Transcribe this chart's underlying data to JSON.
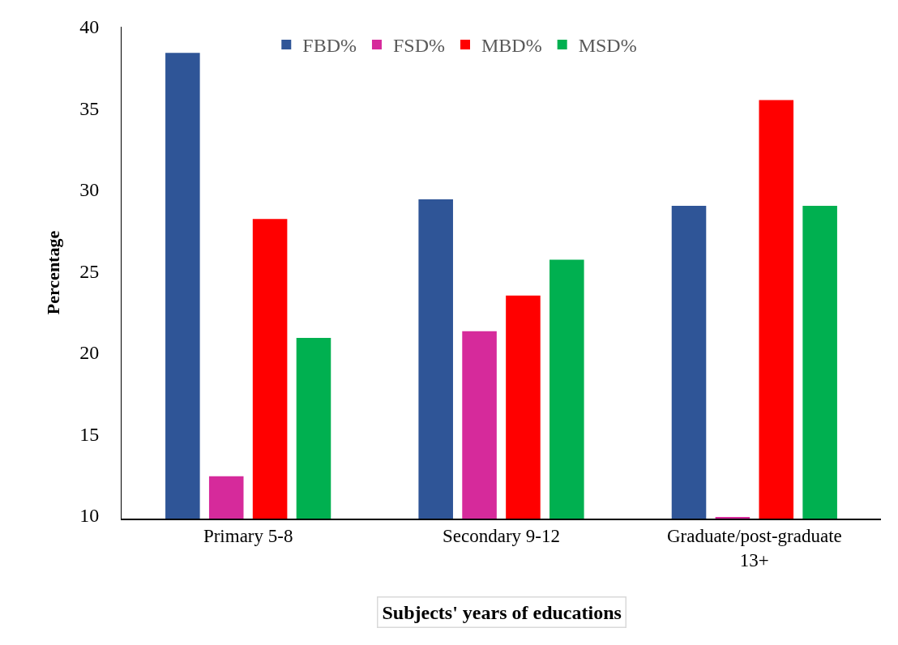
{
  "chart_data": {
    "type": "bar",
    "xlabel": "Subjects' years of educations",
    "ylabel": "Percentage",
    "categories": [
      "Primary 5-8",
      "Secondary 9-12",
      "Graduate/post-graduate 13+"
    ],
    "series": [
      {
        "name": "FBD%",
        "color": "#2f5597",
        "values": [
          38.4,
          29.4,
          29.0
        ]
      },
      {
        "name": "FSD%",
        "color": "#d62a9b",
        "values": [
          12.4,
          21.3,
          9.9
        ]
      },
      {
        "name": "MBD%",
        "color": "#ff0000",
        "values": [
          28.2,
          23.5,
          35.5
        ]
      },
      {
        "name": "MSD%",
        "color": "#00b050",
        "values": [
          20.9,
          25.7,
          29.0
        ]
      }
    ],
    "ylim": [
      9.8,
      40
    ],
    "yticks": [
      10,
      15,
      20,
      25,
      30,
      35,
      40
    ],
    "legend": "top"
  }
}
